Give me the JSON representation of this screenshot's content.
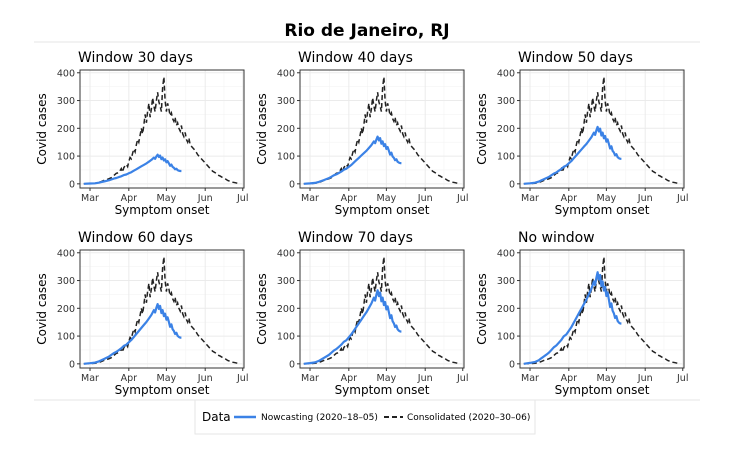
{
  "title": "Rio de Janeiro, RJ",
  "legend": {
    "title": "Data",
    "entries": [
      {
        "label": "Nowcasting (2020–18–05)",
        "color": "#3b82e6",
        "style": "solid"
      },
      {
        "label": "Consolidated (2020–30–06)",
        "color": "#222222",
        "style": "dashed"
      }
    ]
  },
  "chart_data": [
    {
      "type": "line",
      "title": "Window 30 days",
      "xlabel": "Symptom onset",
      "ylabel": "Covid cases",
      "xlim": [
        "2020-02-22",
        "2020-07-02"
      ],
      "ylim": [
        -15,
        410
      ],
      "grid": true,
      "x_ticks": [
        "Mar",
        "Apr",
        "May",
        "Jun",
        "Jul"
      ],
      "y_ticks": [
        0,
        100,
        200,
        300,
        400
      ],
      "nowcast_peak": 105
    },
    {
      "type": "line",
      "title": "Window 40 days",
      "xlabel": "Symptom onset",
      "ylabel": "Covid cases",
      "xlim": [
        "2020-02-22",
        "2020-07-02"
      ],
      "ylim": [
        -15,
        410
      ],
      "grid": true,
      "x_ticks": [
        "Mar",
        "Apr",
        "May",
        "Jun",
        "Jul"
      ],
      "y_ticks": [
        0,
        100,
        200,
        300,
        400
      ],
      "nowcast_peak": 170
    },
    {
      "type": "line",
      "title": "Window 50 days",
      "xlabel": "Symptom onset",
      "ylabel": "Covid cases",
      "xlim": [
        "2020-02-22",
        "2020-07-02"
      ],
      "ylim": [
        -15,
        410
      ],
      "grid": true,
      "x_ticks": [
        "Mar",
        "Apr",
        "May",
        "Jun",
        "Jul"
      ],
      "y_ticks": [
        0,
        100,
        200,
        300,
        400
      ],
      "nowcast_peak": 205
    },
    {
      "type": "line",
      "title": "Window 60 days",
      "xlabel": "Symptom onset",
      "ylabel": "Covid cases",
      "xlim": [
        "2020-02-22",
        "2020-07-02"
      ],
      "ylim": [
        -15,
        410
      ],
      "grid": true,
      "x_ticks": [
        "Mar",
        "Apr",
        "May",
        "Jun",
        "Jul"
      ],
      "y_ticks": [
        0,
        100,
        200,
        300,
        400
      ],
      "nowcast_peak": 215
    },
    {
      "type": "line",
      "title": "Window 70 days",
      "xlabel": "Symptom onset",
      "ylabel": "Covid cases",
      "xlim": [
        "2020-02-22",
        "2020-07-02"
      ],
      "ylim": [
        -15,
        410
      ],
      "grid": true,
      "x_ticks": [
        "Mar",
        "Apr",
        "May",
        "Jun",
        "Jul"
      ],
      "y_ticks": [
        0,
        100,
        200,
        300,
        400
      ],
      "nowcast_peak": 265
    },
    {
      "type": "line",
      "title": "No window",
      "xlabel": "Symptom onset",
      "ylabel": "Covid cases",
      "xlim": [
        "2020-02-22",
        "2020-07-02"
      ],
      "ylim": [
        -15,
        410
      ],
      "grid": true,
      "x_ticks": [
        "Mar",
        "Apr",
        "May",
        "Jun",
        "Jul"
      ],
      "y_ticks": [
        0,
        100,
        200,
        300,
        400
      ],
      "nowcast_peak": 330
    }
  ],
  "consolidated_series": {
    "x": [
      "2020-02-25",
      "2020-03-01",
      "2020-03-05",
      "2020-03-08",
      "2020-03-10",
      "2020-03-12",
      "2020-03-14",
      "2020-03-16",
      "2020-03-18",
      "2020-03-20",
      "2020-03-22",
      "2020-03-24",
      "2020-03-25",
      "2020-03-26",
      "2020-03-27",
      "2020-03-28",
      "2020-03-29",
      "2020-03-30",
      "2020-03-31",
      "2020-04-01",
      "2020-04-02",
      "2020-04-03",
      "2020-04-04",
      "2020-04-05",
      "2020-04-06",
      "2020-04-07",
      "2020-04-08",
      "2020-04-09",
      "2020-04-10",
      "2020-04-11",
      "2020-04-12",
      "2020-04-13",
      "2020-04-14",
      "2020-04-15",
      "2020-04-16",
      "2020-04-17",
      "2020-04-18",
      "2020-04-19",
      "2020-04-20",
      "2020-04-21",
      "2020-04-22",
      "2020-04-23",
      "2020-04-24",
      "2020-04-25",
      "2020-04-26",
      "2020-04-27",
      "2020-04-28",
      "2020-04-29",
      "2020-04-30",
      "2020-05-01",
      "2020-05-02",
      "2020-05-03",
      "2020-05-04",
      "2020-05-05",
      "2020-05-06",
      "2020-05-07",
      "2020-05-08",
      "2020-05-09",
      "2020-05-10",
      "2020-05-11",
      "2020-05-12",
      "2020-05-13",
      "2020-05-14",
      "2020-05-15",
      "2020-05-16",
      "2020-05-17",
      "2020-05-18",
      "2020-05-19",
      "2020-05-20",
      "2020-05-22",
      "2020-05-24",
      "2020-05-26",
      "2020-05-28",
      "2020-05-30",
      "2020-06-01",
      "2020-06-03",
      "2020-06-05",
      "2020-06-07",
      "2020-06-09",
      "2020-06-11",
      "2020-06-13",
      "2020-06-15",
      "2020-06-17",
      "2020-06-19",
      "2020-06-21",
      "2020-06-23",
      "2020-06-25",
      "2020-06-27"
    ],
    "values": [
      0,
      1,
      2,
      5,
      8,
      12,
      15,
      18,
      22,
      30,
      38,
      40,
      48,
      55,
      42,
      58,
      65,
      70,
      62,
      80,
      95,
      90,
      110,
      125,
      115,
      140,
      160,
      150,
      175,
      200,
      180,
      210,
      250,
      220,
      260,
      290,
      240,
      270,
      310,
      280,
      260,
      300,
      330,
      295,
      280,
      260,
      345,
      385,
      300,
      260,
      290,
      270,
      245,
      255,
      235,
      225,
      240,
      210,
      220,
      200,
      190,
      210,
      180,
      170,
      185,
      160,
      150,
      165,
      140,
      130,
      120,
      105,
      95,
      85,
      75,
      65,
      55,
      45,
      40,
      32,
      28,
      22,
      18,
      12,
      9,
      6,
      4,
      2
    ]
  },
  "nowcast_dates": [
    "2020-02-25",
    "2020-03-01",
    "2020-03-05",
    "2020-03-08",
    "2020-03-10",
    "2020-03-12",
    "2020-03-14",
    "2020-03-16",
    "2020-03-18",
    "2020-03-20",
    "2020-03-22",
    "2020-03-24",
    "2020-03-26",
    "2020-03-28",
    "2020-03-30",
    "2020-04-01",
    "2020-04-03",
    "2020-04-05",
    "2020-04-07",
    "2020-04-09",
    "2020-04-11",
    "2020-04-13",
    "2020-04-15",
    "2020-04-17",
    "2020-04-19",
    "2020-04-21",
    "2020-04-22",
    "2020-04-23",
    "2020-04-24",
    "2020-04-25",
    "2020-04-26",
    "2020-04-27",
    "2020-04-28",
    "2020-04-29",
    "2020-04-30",
    "2020-05-01",
    "2020-05-02",
    "2020-05-03",
    "2020-05-04",
    "2020-05-05",
    "2020-05-06",
    "2020-05-07",
    "2020-05-08",
    "2020-05-09",
    "2020-05-10",
    "2020-05-11",
    "2020-05-12",
    "2020-05-13"
  ],
  "nowcast_shape": [
    0,
    0.01,
    0.02,
    0.04,
    0.06,
    0.08,
    0.1,
    0.12,
    0.15,
    0.18,
    0.2,
    0.23,
    0.26,
    0.3,
    0.32,
    0.36,
    0.4,
    0.45,
    0.5,
    0.55,
    0.6,
    0.65,
    0.7,
    0.76,
    0.82,
    0.9,
    0.86,
    0.94,
    1.0,
    0.92,
    0.97,
    0.85,
    0.9,
    0.8,
    0.84,
    0.74,
    0.78,
    0.7,
    0.62,
    0.66,
    0.58,
    0.55,
    0.5,
    0.52,
    0.47,
    0.45,
    0.44,
    0.44
  ],
  "colors": {
    "nowcast": "#3b82e6",
    "consolidated": "#222222",
    "grid": "#ebebeb",
    "axis": "#333333"
  }
}
